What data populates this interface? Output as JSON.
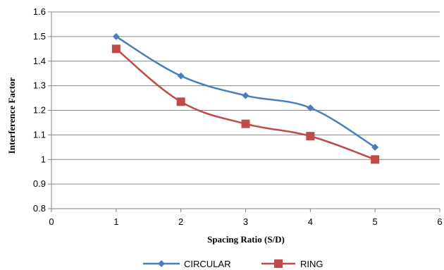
{
  "chart_data": {
    "type": "line",
    "xlabel": "Spacing Ratio (S/D)",
    "ylabel": "Interference Factor",
    "xlim": [
      0,
      6
    ],
    "ylim": [
      0.8,
      1.6
    ],
    "xticks": [
      "0",
      "1",
      "2",
      "3",
      "4",
      "5",
      "6"
    ],
    "yticks": [
      "0.8",
      "0.9",
      "1",
      "1.1",
      "1.2",
      "1.3",
      "1.4",
      "1.5",
      "1.6"
    ],
    "grid": "horizontal",
    "legend_position": "bottom",
    "series": [
      {
        "name": "CIRCULAR",
        "marker": "diamond",
        "color": "#4a7ebb",
        "x": [
          1,
          2,
          3,
          4,
          5
        ],
        "y": [
          1.5,
          1.34,
          1.26,
          1.21,
          1.05
        ]
      },
      {
        "name": "RING",
        "marker": "square",
        "color": "#be4b48",
        "x": [
          1,
          2,
          3,
          4,
          5
        ],
        "y": [
          1.45,
          1.235,
          1.145,
          1.095,
          1.0
        ]
      }
    ]
  }
}
